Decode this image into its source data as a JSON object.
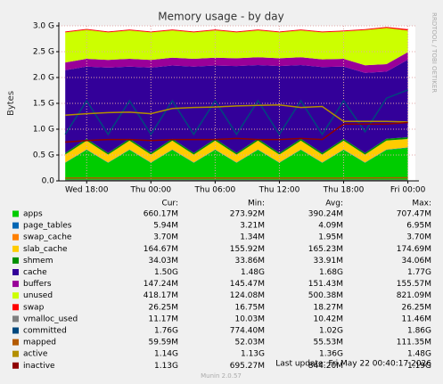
{
  "chart_data": {
    "type": "area",
    "title": "Memory usage - by day",
    "y_label": "Bytes",
    "side_text": "RRDTOOL / TOBI OETIKER",
    "x": [
      -2,
      0,
      2,
      4,
      6,
      8,
      10,
      12,
      14,
      16,
      18,
      20,
      22,
      24,
      26,
      28,
      30
    ],
    "xlim": [
      -2.6,
      30.7
    ],
    "xticks": [
      {
        "value": 0,
        "label": "Wed 18:00"
      },
      {
        "value": 6,
        "label": "Thu 00:00"
      },
      {
        "value": 12,
        "label": "Thu 06:00"
      },
      {
        "value": 18,
        "label": "Thu 12:00"
      },
      {
        "value": 24,
        "label": "Thu 18:00"
      },
      {
        "value": 30,
        "label": "Fri 00:00"
      }
    ],
    "ylim": [
      0,
      3
    ],
    "yticks": [
      {
        "value": 0,
        "label": "0.0"
      },
      {
        "value": 0.5,
        "label": "0.5 G"
      },
      {
        "value": 1,
        "label": "1.0 G"
      },
      {
        "value": 1.5,
        "label": "1.5 G"
      },
      {
        "value": 2,
        "label": "2.0 G"
      },
      {
        "value": 2.5,
        "label": "2.5 G"
      },
      {
        "value": 3,
        "label": "3.0 G"
      }
    ],
    "grid": true,
    "legend_headers": [
      "Cur:",
      "Min:",
      "Avg:",
      "Max:"
    ],
    "series": [
      {
        "name": "apps",
        "color": "#00cc00",
        "style": "area",
        "cur": "660.17M",
        "min": "273.92M",
        "avg": "390.24M",
        "max": "707.47M",
        "values": [
          0.35,
          0.6,
          0.35,
          0.6,
          0.35,
          0.6,
          0.35,
          0.6,
          0.35,
          0.6,
          0.35,
          0.6,
          0.35,
          0.6,
          0.35,
          0.6,
          0.64
        ]
      },
      {
        "name": "page_tables",
        "color": "#0066b3",
        "style": "area",
        "cur": "5.94M",
        "min": "3.21M",
        "avg": "4.09M",
        "max": "6.95M",
        "values": [
          0.006,
          0.006,
          0.006,
          0.006,
          0.006,
          0.006,
          0.006,
          0.006,
          0.006,
          0.006,
          0.006,
          0.006,
          0.006,
          0.006,
          0.006,
          0.006,
          0.006
        ]
      },
      {
        "name": "swap_cache",
        "color": "#ff8000",
        "style": "area",
        "cur": "3.70M",
        "min": "1.34M",
        "avg": "1.95M",
        "max": "3.70M",
        "values": [
          0.002,
          0.002,
          0.002,
          0.002,
          0.002,
          0.002,
          0.002,
          0.002,
          0.002,
          0.002,
          0.002,
          0.002,
          0.002,
          0.002,
          0.002,
          0.003,
          0.004
        ]
      },
      {
        "name": "slab_cache",
        "color": "#ffcc00",
        "style": "area",
        "cur": "164.67M",
        "min": "155.92M",
        "avg": "165.23M",
        "max": "174.69M",
        "values": [
          0.15,
          0.17,
          0.15,
          0.17,
          0.15,
          0.17,
          0.15,
          0.17,
          0.15,
          0.17,
          0.15,
          0.17,
          0.15,
          0.17,
          0.15,
          0.17,
          0.16
        ]
      },
      {
        "name": "shmem",
        "color": "#008f00",
        "style": "area",
        "cur": "34.03M",
        "min": "33.86M",
        "avg": "33.91M",
        "max": "34.06M",
        "values": [
          0.034,
          0.034,
          0.034,
          0.034,
          0.034,
          0.034,
          0.034,
          0.034,
          0.034,
          0.034,
          0.034,
          0.034,
          0.034,
          0.034,
          0.034,
          0.034,
          0.034
        ]
      },
      {
        "name": "cache",
        "color": "#330099",
        "style": "area",
        "cur": "1.50G",
        "min": "1.48G",
        "avg": "1.68G",
        "max": "1.77G",
        "values": [
          1.6,
          1.4,
          1.65,
          1.4,
          1.65,
          1.42,
          1.67,
          1.42,
          1.68,
          1.43,
          1.68,
          1.43,
          1.66,
          1.4,
          1.55,
          1.3,
          1.5
        ]
      },
      {
        "name": "buffers",
        "color": "#990099",
        "style": "area",
        "cur": "147.24M",
        "min": "145.47M",
        "avg": "151.43M",
        "max": "155.57M",
        "values": [
          0.15,
          0.15,
          0.15,
          0.15,
          0.15,
          0.15,
          0.15,
          0.15,
          0.15,
          0.15,
          0.15,
          0.15,
          0.15,
          0.15,
          0.145,
          0.145,
          0.147
        ]
      },
      {
        "name": "unused",
        "color": "#ccff00",
        "style": "area",
        "cur": "418.17M",
        "min": "124.08M",
        "avg": "500.38M",
        "max": "821.09M",
        "values": [
          0.58,
          0.56,
          0.53,
          0.55,
          0.53,
          0.53,
          0.51,
          0.53,
          0.5,
          0.52,
          0.5,
          0.52,
          0.52,
          0.53,
          0.68,
          0.7,
          0.42
        ]
      },
      {
        "name": "swap",
        "color": "#ff0000",
        "style": "area",
        "cur": "26.25M",
        "min": "16.75M",
        "avg": "18.27M",
        "max": "26.25M",
        "values": [
          0.017,
          0.017,
          0.017,
          0.017,
          0.017,
          0.017,
          0.017,
          0.017,
          0.017,
          0.017,
          0.017,
          0.017,
          0.017,
          0.017,
          0.018,
          0.02,
          0.026
        ]
      },
      {
        "name": "vmalloc_used",
        "color": "#808080",
        "style": "line",
        "cur": "11.17M",
        "min": "10.03M",
        "avg": "10.42M",
        "max": "11.46M",
        "values": [
          0.01,
          0.01,
          0.01,
          0.01,
          0.01,
          0.01,
          0.01,
          0.01,
          0.01,
          0.01,
          0.01,
          0.01,
          0.01,
          0.01,
          0.01,
          0.011,
          0.011
        ]
      },
      {
        "name": "committed",
        "color": "#00487d",
        "style": "line",
        "cur": "1.76G",
        "min": "774.40M",
        "avg": "1.02G",
        "max": "1.86G",
        "values": [
          0.9,
          1.55,
          0.9,
          1.55,
          0.9,
          1.55,
          0.9,
          1.55,
          0.9,
          1.55,
          0.9,
          1.55,
          0.9,
          1.55,
          0.95,
          1.6,
          1.76
        ]
      },
      {
        "name": "mapped",
        "color": "#b35a00",
        "style": "line",
        "cur": "59.59M",
        "min": "52.03M",
        "avg": "55.53M",
        "max": "111.35M",
        "values": [
          0.054,
          0.055,
          0.054,
          0.055,
          0.054,
          0.055,
          0.054,
          0.055,
          0.054,
          0.055,
          0.054,
          0.055,
          0.054,
          0.055,
          0.056,
          0.058,
          0.06
        ]
      },
      {
        "name": "active",
        "color": "#b38f00",
        "style": "line",
        "cur": "1.14G",
        "min": "1.13G",
        "avg": "1.36G",
        "max": "1.48G",
        "values": [
          1.27,
          1.3,
          1.32,
          1.33,
          1.3,
          1.4,
          1.42,
          1.43,
          1.45,
          1.46,
          1.47,
          1.42,
          1.44,
          1.15,
          1.15,
          1.15,
          1.14
        ]
      },
      {
        "name": "inactive",
        "color": "#8f0000",
        "style": "line",
        "cur": "1.13G",
        "min": "695.27M",
        "avg": "844.20M",
        "max": "1.19G",
        "values": [
          0.75,
          0.78,
          0.8,
          0.8,
          0.78,
          0.8,
          0.8,
          0.8,
          0.82,
          0.8,
          0.8,
          0.82,
          0.8,
          1.1,
          1.1,
          1.1,
          1.13
        ]
      }
    ],
    "last_update": "Last update: Fri May 22 00:40:17 2026",
    "generator": "Munin 2.0.57"
  }
}
